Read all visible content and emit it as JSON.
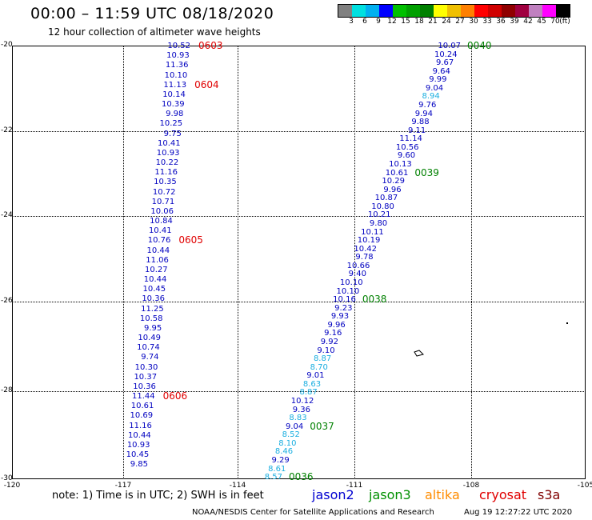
{
  "header": {
    "title": "00:00 – 11:59 UTC 08/18/2020",
    "subtitle": "12 hour collection of altimeter wave heights"
  },
  "legend": {
    "colors": [
      "#808080",
      "#00e0e0",
      "#00b0f0",
      "#0000ff",
      "#00c000",
      "#00a000",
      "#008000",
      "#ffff00",
      "#f0c000",
      "#ff8000",
      "#ff0000",
      "#d00000",
      "#900000",
      "#a00040",
      "#c080c0",
      "#ff00ff",
      "#000000"
    ],
    "ticks": [
      "3",
      "6",
      "9",
      "12",
      "15",
      "18",
      "21",
      "24",
      "27",
      "30",
      "33",
      "36",
      "39",
      "42",
      "45",
      "70",
      "(ft)"
    ]
  },
  "axes": {
    "lat_labels": [
      "-20",
      "-22",
      "-24",
      "-26",
      "-28",
      "-30"
    ],
    "lon_labels": [
      "-120",
      "-117",
      "-114",
      "-111",
      "-108",
      "-105"
    ]
  },
  "tracks": {
    "west": {
      "values": [
        "10.52",
        "10.93",
        "11.36",
        "10.10",
        "11.13",
        "10.14",
        "10.39",
        "9.98",
        "10.25",
        "9.75",
        "10.41",
        "10.93",
        "10.22",
        "11.16",
        "10.35",
        "10.72",
        "10.71",
        "10.06",
        "10.84",
        "10.41",
        "10.76",
        "10.44",
        "11.06",
        "10.27",
        "10.44",
        "10.45",
        "10.36",
        "11.25",
        "10.58",
        "9.95",
        "10.49",
        "10.74",
        "9.74",
        "10.30",
        "10.37",
        "10.36",
        "11.44",
        "10.61",
        "10.69",
        "11.16",
        "10.44",
        "10.93",
        "10.45",
        "9.85"
      ],
      "colors": [
        "#0000c0",
        "#0000c0",
        "#0000c0",
        "#0000c0",
        "#0000c0",
        "#0000c0",
        "#0000c0",
        "#0000c0",
        "#0000c0",
        "#0000c0",
        "#0000c0",
        "#0000c0",
        "#0000c0",
        "#0000c0",
        "#0000c0",
        "#0000c0",
        "#0000c0",
        "#0000c0",
        "#0000c0",
        "#0000c0",
        "#0000c0",
        "#0000c0",
        "#0000c0",
        "#0000c0",
        "#0000c0",
        "#0000c0",
        "#0000c0",
        "#0000c0",
        "#0000c0",
        "#0000c0",
        "#0000c0",
        "#0000c0",
        "#0000c0",
        "#0000c0",
        "#0000c0",
        "#0000c0",
        "#0000c0",
        "#0000c0",
        "#0000c0",
        "#0000c0",
        "#0000c0",
        "#0000c0",
        "#0000c0",
        "#0000c0"
      ],
      "time_labels": [
        {
          "text": "0603",
          "row": 0
        },
        {
          "text": "0604",
          "row": 4
        },
        {
          "text": "0605",
          "row": 20
        },
        {
          "text": "0606",
          "row": 36
        }
      ]
    },
    "east": {
      "values": [
        "10.07",
        "10.24",
        "9.67",
        "9.64",
        "9.99",
        "9.04",
        "8.94",
        "9.76",
        "9.94",
        "9.88",
        "9.11",
        "11.14",
        "10.56",
        "9.60",
        "10.13",
        "10.61",
        "10.29",
        "9.96",
        "10.87",
        "10.80",
        "10.21",
        "9.80",
        "10.11",
        "10.19",
        "10.42",
        "9.78",
        "10.66",
        "9.40",
        "10.10",
        "10.10",
        "10.16",
        "9.23",
        "9.93",
        "9.96",
        "9.16",
        "9.92",
        "9.10",
        "8.87",
        "8.70",
        "9.01",
        "8.63",
        "8.87",
        "10.12",
        "9.36",
        "8.83",
        "9.04",
        "8.52",
        "8.10",
        "8.46",
        "9.29",
        "8.61",
        "8.57"
      ],
      "colors": [
        "#0000c0",
        "#0000c0",
        "#0000c0",
        "#0000c0",
        "#0000c0",
        "#0000c0",
        "#1aaee0",
        "#0000c0",
        "#0000c0",
        "#0000c0",
        "#0000c0",
        "#0000c0",
        "#0000c0",
        "#0000c0",
        "#0000c0",
        "#0000c0",
        "#0000c0",
        "#0000c0",
        "#0000c0",
        "#0000c0",
        "#0000c0",
        "#0000c0",
        "#0000c0",
        "#0000c0",
        "#0000c0",
        "#0000c0",
        "#0000c0",
        "#0000c0",
        "#0000c0",
        "#0000c0",
        "#0000c0",
        "#0000c0",
        "#0000c0",
        "#0000c0",
        "#0000c0",
        "#0000c0",
        "#0000c0",
        "#1aaee0",
        "#1aaee0",
        "#0000c0",
        "#1aaee0",
        "#1aaee0",
        "#0000c0",
        "#0000c0",
        "#1aaee0",
        "#0000c0",
        "#1aaee0",
        "#1aaee0",
        "#1aaee0",
        "#0000c0",
        "#1aaee0",
        "#1aaee0"
      ],
      "time_labels": [
        {
          "text": "0040",
          "row": 0
        },
        {
          "text": "0039",
          "row": 15
        },
        {
          "text": "0038",
          "row": 30
        },
        {
          "text": "0037",
          "row": 45
        },
        {
          "text": "0036",
          "row": 51
        }
      ]
    }
  },
  "footer": {
    "note": "note:  1) Time is in UTC;  2) SWH is in feet",
    "satellites": [
      {
        "name": "jason2",
        "color": "#0000d0"
      },
      {
        "name": "jason3",
        "color": "#009000"
      },
      {
        "name": "altika",
        "color": "#ff8c00"
      },
      {
        "name": "cryosat",
        "color": "#e00000"
      },
      {
        "name": "s3a",
        "color": "#800000"
      }
    ],
    "credit": "NOAA/NESDIS Center for Satellite Applications and Research",
    "timestamp": "Aug 19 12:27:22 UTC 2020"
  }
}
